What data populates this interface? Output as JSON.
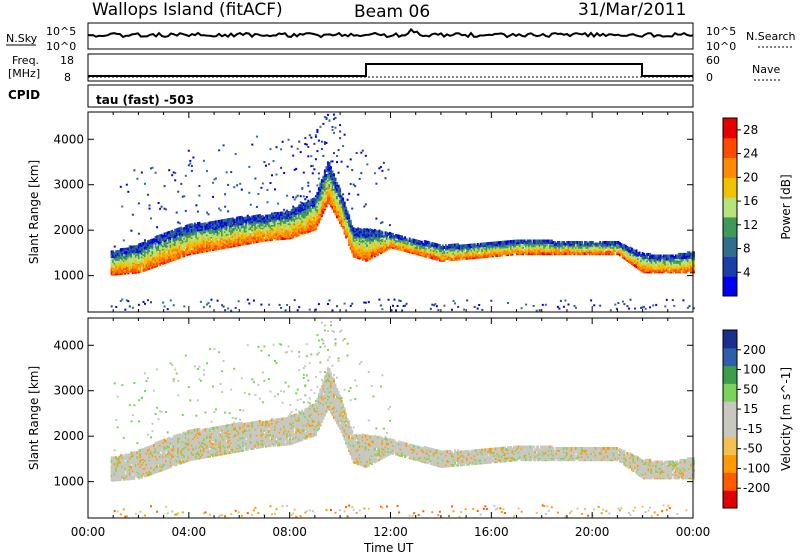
{
  "header": {
    "station": "Wallops Island (fitACF)",
    "beam": "Beam 06",
    "date": "31/Mar/2011"
  },
  "strips": {
    "nsky_label": "N.Sky",
    "nsky_ticks": [
      "10^5",
      "10^0"
    ],
    "nsearch_label": "N.Search",
    "nsearch_ticks": [
      "10^5",
      "10^0"
    ],
    "freq_label_1": "Freq.",
    "freq_label_2": "[MHz]",
    "freq_ticks": [
      "18",
      "8"
    ],
    "nave_label": "Nave",
    "nave_ticks": [
      "60",
      "0"
    ],
    "cpid_label": "CPID",
    "cpid_text": "tau (fast) -503"
  },
  "colors": {
    "power_scale": [
      "#0000ee",
      "#1a3fa8",
      "#2f6e8c",
      "#3f9a5a",
      "#b6e37a",
      "#f2c200",
      "#ff8a00",
      "#ff4a00",
      "#e60000"
    ],
    "velocity_scale": [
      "#e00000",
      "#ff5a00",
      "#ff9a00",
      "#f4c050",
      "#c8c8c0",
      "#c8c8c0",
      "#7bd35a",
      "#3d9e4a",
      "#2e5fa8",
      "#1a2f8e"
    ]
  },
  "chart_data": [
    {
      "type": "heatmap",
      "title": "",
      "xlabel": "Time UT",
      "ylabel": "Slant Range [km]",
      "xlim": [
        "00:00",
        "24:00"
      ],
      "ylim": [
        200,
        4600
      ],
      "x_ticks": [
        "00:00",
        "04:00",
        "08:00",
        "12:00",
        "16:00",
        "20:00",
        "00:00"
      ],
      "y_ticks": [
        1000,
        2000,
        3000,
        4000
      ],
      "colorbar": {
        "label": "Power [dB]",
        "ticks": [
          4,
          8,
          12,
          16,
          20,
          24,
          28
        ],
        "range": [
          0,
          30
        ]
      },
      "echo_band": {
        "time_hours": [
          1,
          2,
          3,
          4,
          5,
          6,
          7,
          8,
          9,
          9.5,
          10,
          10.5,
          11,
          12,
          13,
          14,
          15,
          16,
          17,
          18,
          19,
          20,
          21,
          22,
          23,
          24
        ],
        "lower_range_km": [
          1000,
          1050,
          1250,
          1450,
          1550,
          1650,
          1750,
          1800,
          2000,
          2600,
          2100,
          1400,
          1300,
          1600,
          1450,
          1300,
          1350,
          1400,
          1450,
          1450,
          1450,
          1450,
          1450,
          1050,
          1050,
          1050
        ],
        "upper_range_km": [
          1500,
          1650,
          1900,
          2100,
          2150,
          2250,
          2300,
          2400,
          2700,
          3500,
          2800,
          2000,
          2000,
          1900,
          1750,
          1650,
          1650,
          1700,
          1750,
          1750,
          1700,
          1700,
          1700,
          1450,
          1400,
          1500
        ]
      }
    },
    {
      "type": "heatmap",
      "title": "",
      "xlabel": "Time UT",
      "ylabel": "Slant Range [km]",
      "xlim": [
        "00:00",
        "24:00"
      ],
      "ylim": [
        200,
        4600
      ],
      "x_ticks": [
        "00:00",
        "04:00",
        "08:00",
        "12:00",
        "16:00",
        "20:00",
        "00:00"
      ],
      "y_ticks": [
        1000,
        2000,
        3000,
        4000
      ],
      "colorbar": {
        "label": "Velocity [m s^-1]",
        "ticks": [
          200,
          100,
          50,
          15,
          -15,
          -50,
          -100,
          -200
        ]
      }
    }
  ]
}
